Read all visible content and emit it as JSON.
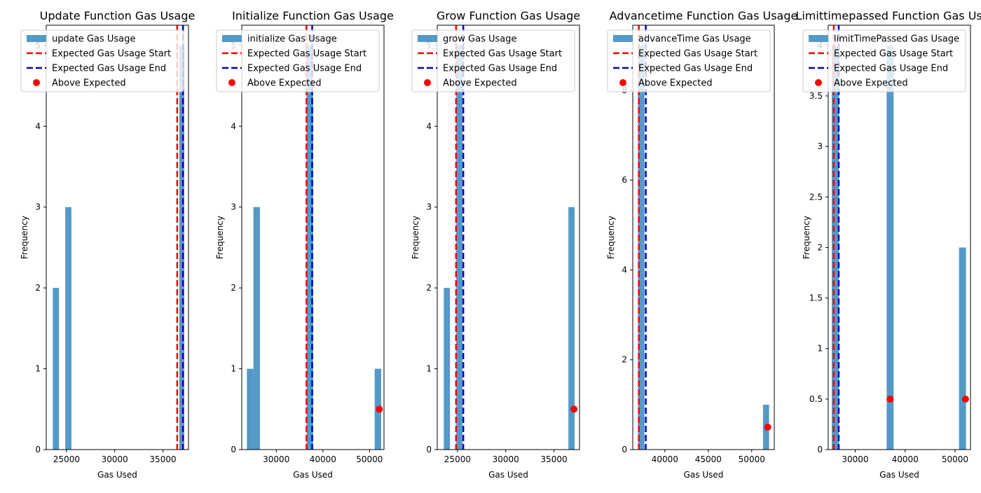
{
  "chart_data": [
    {
      "type": "bar",
      "title": "Update Function Gas Usage",
      "xlabel": "Gas Used",
      "ylabel": "Frequency",
      "xlim": [
        22900,
        37650
      ],
      "ylim": [
        0,
        5.25
      ],
      "xticks": [
        25000,
        30000,
        35000
      ],
      "yticks": [
        0,
        1,
        2,
        3,
        4,
        5
      ],
      "bars": [
        {
          "x0": 23580,
          "x1": 24220,
          "value": 2
        },
        {
          "x0": 24870,
          "x1": 25510,
          "value": 3
        },
        {
          "x0": 36700,
          "x1": 37200,
          "value": 5
        }
      ],
      "expected_start": 36480,
      "expected_end": 37080,
      "above_expected": [],
      "legend": {
        "placement": "upper-left",
        "entries": [
          "update Gas Usage",
          "Expected Gas Usage Start",
          "Expected Gas Usage End",
          "Above Expected"
        ]
      }
    },
    {
      "type": "bar",
      "title": "Initialize Function Gas Usage",
      "xlabel": "Gas Used",
      "ylabel": "Frequency",
      "xlim": [
        22600,
        53100
      ],
      "ylim": [
        0,
        5.25
      ],
      "xticks": [
        30000,
        40000,
        50000
      ],
      "yticks": [
        0,
        1,
        2,
        3,
        4,
        5
      ],
      "bars": [
        {
          "x0": 23700,
          "x1": 25100,
          "value": 1
        },
        {
          "x0": 25100,
          "x1": 26500,
          "value": 3
        },
        {
          "x0": 36500,
          "x1": 37900,
          "value": 5
        },
        {
          "x0": 51100,
          "x1": 52500,
          "value": 1
        }
      ],
      "expected_start": 36480,
      "expected_end": 37700,
      "above_expected": [
        {
          "x": 52100,
          "y": 0.5
        }
      ],
      "legend": {
        "placement": "upper-left",
        "entries": [
          "initialize Gas Usage",
          "Expected Gas Usage Start",
          "Expected Gas Usage End",
          "Above Expected"
        ]
      }
    },
    {
      "type": "bar",
      "title": "Grow Function Gas Usage",
      "xlabel": "Gas Used",
      "ylabel": "Frequency",
      "xlim": [
        22900,
        37650
      ],
      "ylim": [
        0,
        5.25
      ],
      "xticks": [
        25000,
        30000,
        35000
      ],
      "yticks": [
        0,
        1,
        2,
        3,
        4,
        5
      ],
      "bars": [
        {
          "x0": 23580,
          "x1": 24220,
          "value": 2
        },
        {
          "x0": 24870,
          "x1": 25510,
          "value": 5
        },
        {
          "x0": 36500,
          "x1": 37140,
          "value": 3
        }
      ],
      "expected_start": 24850,
      "expected_end": 25600,
      "above_expected": [
        {
          "x": 37080,
          "y": 0.5
        }
      ],
      "legend": {
        "placement": "upper-left",
        "entries": [
          "grow Gas Usage",
          "Expected Gas Usage Start",
          "Expected Gas Usage End",
          "Above Expected"
        ]
      }
    },
    {
      "type": "bar",
      "title": "Advancetime Function Gas Usage",
      "xlabel": "Gas Used",
      "ylabel": "Frequency",
      "xlim": [
        36300,
        52600
      ],
      "ylim": [
        0,
        9.45
      ],
      "xticks": [
        40000,
        45000,
        50000
      ],
      "yticks": [
        0,
        2,
        4,
        6,
        8
      ],
      "bars": [
        {
          "x0": 36900,
          "x1": 37650,
          "value": 9
        },
        {
          "x0": 51300,
          "x1": 52000,
          "value": 1
        }
      ],
      "expected_start": 37000,
      "expected_end": 37800,
      "above_expected": [
        {
          "x": 51850,
          "y": 0.5
        }
      ],
      "legend": {
        "placement": "upper-left",
        "entries": [
          "advanceTime Gas Usage",
          "Expected Gas Usage Start",
          "Expected Gas Usage End",
          "Above Expected"
        ]
      }
    },
    {
      "type": "bar",
      "title": "Limittimepassed Function Gas Usage",
      "xlabel": "Gas Used",
      "ylabel": "Frequency",
      "xlim": [
        24600,
        53100
      ],
      "ylim": [
        0,
        4.2
      ],
      "xticks": [
        30000,
        40000,
        50000
      ],
      "yticks": [
        0,
        0.5,
        1.0,
        1.5,
        2.0,
        2.5,
        3.0,
        3.5,
        4.0
      ],
      "bars": [
        {
          "x0": 25300,
          "x1": 26700,
          "value": 4
        },
        {
          "x0": 36300,
          "x1": 37700,
          "value": 4
        },
        {
          "x0": 50800,
          "x1": 52200,
          "value": 2
        }
      ],
      "expected_start": 25700,
      "expected_end": 26700,
      "above_expected": [
        {
          "x": 37000,
          "y": 0.5
        },
        {
          "x": 52100,
          "y": 0.5
        }
      ],
      "legend": {
        "placement": "upper-left",
        "entries": [
          "limitTimePassed Gas Usage",
          "Expected Gas Usage Start",
          "Expected Gas Usage End",
          "Above Expected"
        ]
      }
    }
  ],
  "colors": {
    "bar": "#5499c7",
    "expected_start": "#ff0000",
    "expected_end": "#0000cc",
    "above_expected": "#ff0000"
  }
}
